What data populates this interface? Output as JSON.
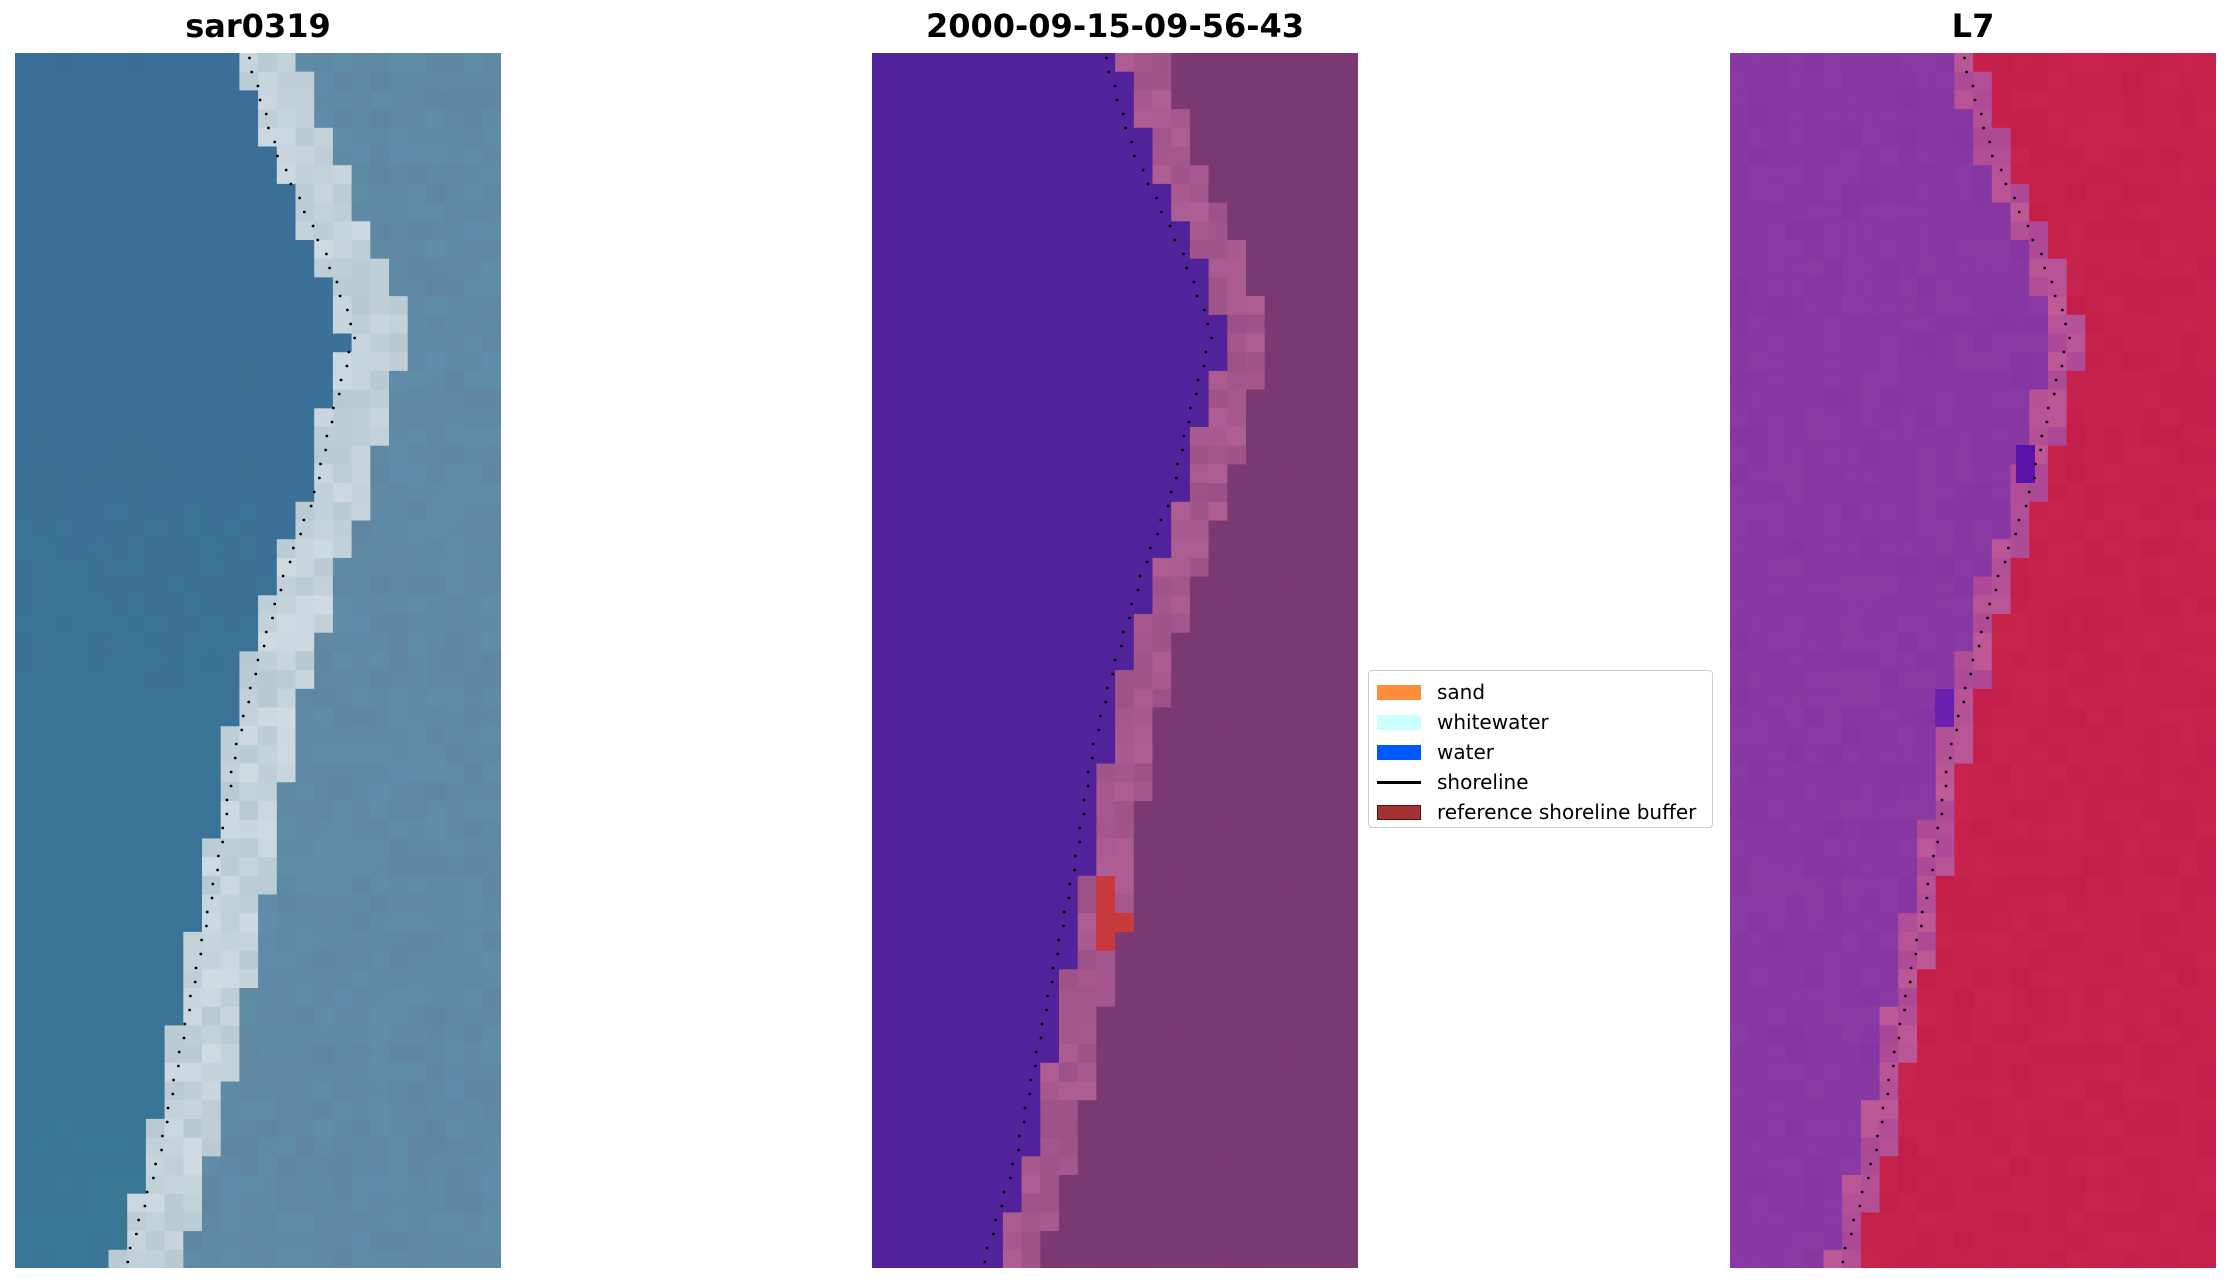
{
  "panels": [
    {
      "title": "sar0319",
      "style": "rgb"
    },
    {
      "title": "2000-09-15-09-56-43",
      "style": "classified"
    },
    {
      "title": "L7",
      "style": "index"
    }
  ],
  "legend": {
    "items": [
      {
        "label": "sand",
        "color": "#ff8c3a",
        "kind": "patch"
      },
      {
        "label": "whitewater",
        "color": "#ccffff",
        "kind": "patch"
      },
      {
        "label": "water",
        "color": "#0059ff",
        "kind": "patch"
      },
      {
        "label": "shoreline",
        "color": "#000000",
        "kind": "line"
      },
      {
        "label": "reference shoreline buffer",
        "color": "#a33131",
        "kind": "patch-bordered"
      }
    ]
  },
  "colors": {
    "water_rgb": "#3b6e98",
    "beach_rgb": "#b8c9d2",
    "land_rgb": "#5f8da8",
    "water_class": "#52229a",
    "land_class": "#7c3a72",
    "beach_class": "#b05f94",
    "buffer_class": "#c8393c",
    "water_index": "#8a3aa3",
    "land_index": "#c41f4a",
    "shoreline_dots": "#000000"
  }
}
